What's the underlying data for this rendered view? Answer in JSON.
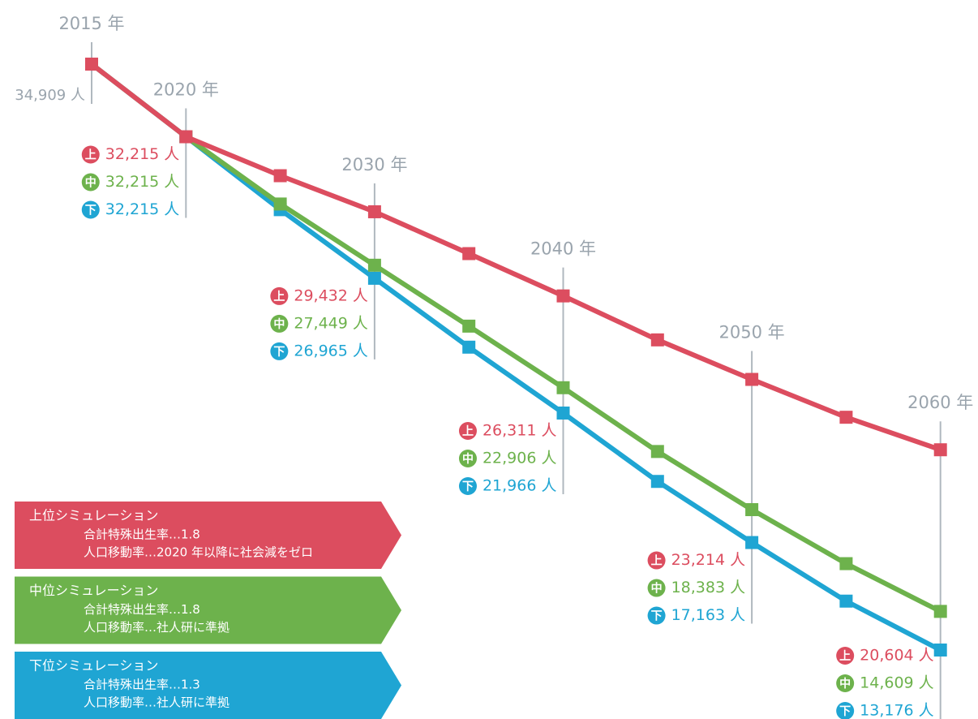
{
  "chart_data": {
    "type": "line",
    "categories": [
      "2015 年",
      "2020 年",
      null,
      "2030 年",
      null,
      "2040 年",
      null,
      "2050 年",
      null,
      "2060 年"
    ],
    "series": [
      {
        "name": "上位シミュレーション",
        "icon": "上",
        "color": "#dc4d5f",
        "notes": [
          "合計特殊出生率…1.8",
          "人口移動率…2020 年以降に社会減をゼロ"
        ],
        "values": [
          34909,
          32215,
          30770,
          29432,
          27880,
          26311,
          24680,
          23214,
          21810,
          20604
        ],
        "value_labels": [
          "34,909 人",
          "32,215 人",
          null,
          "29,432 人",
          null,
          "26,311 人",
          null,
          "23,214 人",
          null,
          "20,604 人"
        ]
      },
      {
        "name": "中位シミュレーション",
        "icon": "中",
        "color": "#6db24c",
        "notes": [
          "合計特殊出生率…1.8",
          "人口移動率…社人研に準拠"
        ],
        "values": [
          34909,
          32215,
          29720,
          27449,
          25190,
          22906,
          20540,
          18383,
          16380,
          14609
        ],
        "value_labels": [
          null,
          "32,215 人",
          null,
          "27,449 人",
          null,
          "22,906 人",
          null,
          "18,383 人",
          null,
          "14,609 人"
        ]
      },
      {
        "name": "下位シミュレーション",
        "icon": "下",
        "color": "#1fa5d3",
        "notes": [
          "合計特殊出生率…1.3",
          "人口移動率…社人研に準拠"
        ],
        "values": [
          34909,
          32215,
          29510,
          26965,
          24410,
          21966,
          19430,
          17163,
          14990,
          13176
        ],
        "value_labels": [
          null,
          "32,215 人",
          null,
          "26,965 人",
          null,
          "21,966 人",
          null,
          "17,163 人",
          null,
          "13,176 人"
        ]
      }
    ]
  }
}
